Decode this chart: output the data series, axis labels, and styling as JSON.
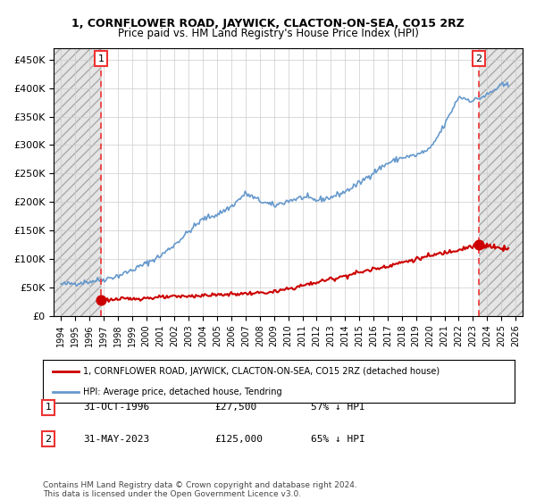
{
  "title": "1, CORNFLOWER ROAD, JAYWICK, CLACTON-ON-SEA, CO15 2RZ",
  "subtitle": "Price paid vs. HM Land Registry's House Price Index (HPI)",
  "ylim": [
    0,
    470000
  ],
  "yticks": [
    0,
    50000,
    100000,
    150000,
    200000,
    250000,
    300000,
    350000,
    400000,
    450000
  ],
  "hpi_color": "#6699cc",
  "price_color": "#cc0000",
  "dashed_line_color": "#ee3333",
  "hatch_color": "#cccccc",
  "sale1_date": 1996.83,
  "sale1_price": 27500,
  "sale2_date": 2023.42,
  "sale2_price": 125000,
  "legend_label1": "1, CORNFLOWER ROAD, JAYWICK, CLACTON-ON-SEA, CO15 2RZ (detached house)",
  "legend_label2": "HPI: Average price, detached house, Tendring",
  "table_row1": [
    "1",
    "31-OCT-1996",
    "£27,500",
    "57% ↓ HPI"
  ],
  "table_row2": [
    "2",
    "31-MAY-2023",
    "£125,000",
    "65% ↓ HPI"
  ],
  "footnote": "Contains HM Land Registry data © Crown copyright and database right 2024.\nThis data is licensed under the Open Government Licence v3.0.",
  "xmin": 1993.5,
  "xmax": 2026.5
}
